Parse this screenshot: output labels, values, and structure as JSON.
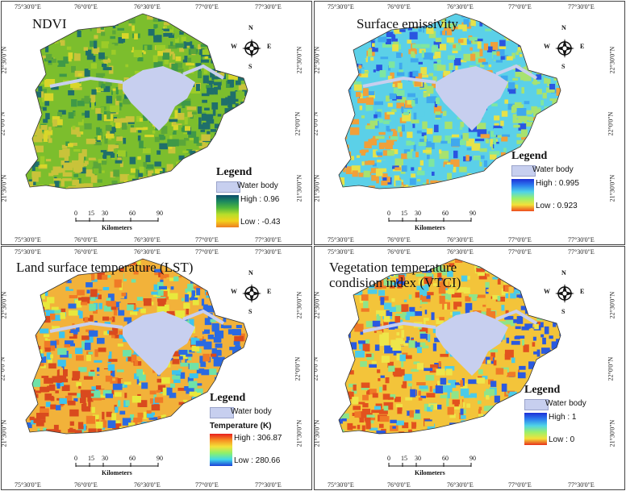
{
  "coords": {
    "top": [
      "75°30'0\"E",
      "76°0'0\"E",
      "76°30'0\"E",
      "77°0'0\"E",
      "77°30'0\"E"
    ],
    "bottom": [
      "75°30'0\"E",
      "76°0'0\"E",
      "76°30'0\"E",
      "77°0'0\"E",
      "77°30'0\"E"
    ],
    "lat": [
      "22°30'0\"N",
      "22°0'0\"N",
      "21°30'0\"N"
    ]
  },
  "compass": {
    "n": "N",
    "s": "S",
    "e": "E",
    "w": "W"
  },
  "scalebar": {
    "ticks": [
      "0",
      "15",
      "30",
      "60",
      "90"
    ],
    "unit": "Kilometers"
  },
  "panels": [
    {
      "title": "NDVI",
      "legend_title": "Legend",
      "water_label": "Water body",
      "high": "High : 0.96",
      "low": "Low : -0.43",
      "ramp": [
        "#0b4a6b",
        "#1d8a5e",
        "#52b83b",
        "#b8de2a",
        "#f2d21d",
        "#ee7d22"
      ],
      "colors": [
        "#7cbe2d",
        "#9ccc28",
        "#5aa63a",
        "#d8d62a",
        "#3f9947",
        "#1f6f6b",
        "#c9c33a"
      ]
    },
    {
      "title": "Surface emissivity",
      "legend_title": "Legend",
      "water_label": "Water body",
      "high": "High : 0.995",
      "low": "Low : 0.923",
      "ramp": [
        "#1d2fd6",
        "#2c7ff0",
        "#4fd4e8",
        "#9af06b",
        "#f3e23a",
        "#ee4a1c"
      ],
      "colors": [
        "#5bd0e8",
        "#7ee6a0",
        "#3fa8ee",
        "#e6e24a",
        "#2a55e0",
        "#a7e270",
        "#f0a03a"
      ]
    },
    {
      "title": "Land surface temperature (LST)",
      "legend_title": "Legend",
      "water_label": "Water body",
      "units_label": "Temperature (K)",
      "high": "High : 306.87",
      "low": "Low : 280.66",
      "ramp": [
        "#e81e1e",
        "#f79022",
        "#f3e23a",
        "#8ef06b",
        "#40d8ea",
        "#1d3fd8"
      ],
      "colors": [
        "#f2b23a",
        "#e8e83c",
        "#f07a26",
        "#6fe2a8",
        "#3cc4ee",
        "#2a6ae2",
        "#d94a1e"
      ]
    },
    {
      "title": "Vegetation temperature condision index (VTCI)",
      "title_lines": [
        "Vegetation temperature",
        "condision index (VTCI)"
      ],
      "legend_title": "Legend",
      "water_label": "Water body",
      "high": "High : 1",
      "low": "Low : 0",
      "ramp": [
        "#1d2fd6",
        "#2c7ff0",
        "#4fd4e8",
        "#9af06b",
        "#f3e23a",
        "#e8301c"
      ],
      "colors": [
        "#f3c43a",
        "#eee64a",
        "#f07a26",
        "#8ee48a",
        "#4ccbe8",
        "#2a5ae0",
        "#e2521e"
      ]
    }
  ]
}
